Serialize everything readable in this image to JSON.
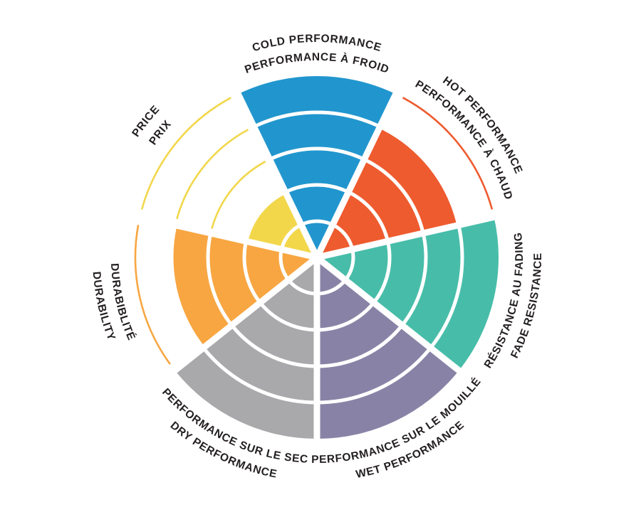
{
  "chart_data": {
    "type": "bar",
    "layout": "polar radial rating wheel, 7 equal wedges, clockwise from top, rings filled from center",
    "rings": 5,
    "value_max": 5,
    "background_color": "#FFFFFF",
    "text_color": "#231F20",
    "ring_separator_color": "#FFFFFF",
    "legend": "none",
    "title": "",
    "segments": [
      {
        "id": "cold-performance",
        "labels": [
          "COLD PERFORMANCE",
          "PERFORMANCE À FROID"
        ],
        "label_side": "top",
        "value": 5,
        "color": "#2196CE"
      },
      {
        "id": "hot-performance",
        "labels": [
          "HOT PERFORMANCE",
          "PERFORMANCE À CHAUD"
        ],
        "label_side": "top",
        "value": 4,
        "color": "#EE5B2F"
      },
      {
        "id": "fade-resistance",
        "labels": [
          "RÉSISTANCE AU FADING",
          "FADE RESISTANCE"
        ],
        "label_side": "bottom",
        "value": 5,
        "color": "#47BDA9"
      },
      {
        "id": "wet-performance",
        "labels": [
          "PERFORMANCE SUR LE MOUILLÉ",
          "WET PERFORMANCE"
        ],
        "label_side": "bottom",
        "value": 5,
        "color": "#8883A6"
      },
      {
        "id": "dry-performance",
        "labels": [
          "PERFORMANCE SUR LE SEC",
          "DRY PERFORMANCE"
        ],
        "label_side": "bottom",
        "value": 5,
        "color": "#A9A9AB"
      },
      {
        "id": "durability",
        "labels": [
          "DURABIBLITÉ",
          "DURABILITY"
        ],
        "label_side": "bottom",
        "value": 4,
        "color": "#F8A642"
      },
      {
        "id": "price",
        "labels": [
          "PRICE",
          "PRIX"
        ],
        "label_side": "top",
        "value": 2,
        "color": "#F2D74B"
      }
    ]
  }
}
